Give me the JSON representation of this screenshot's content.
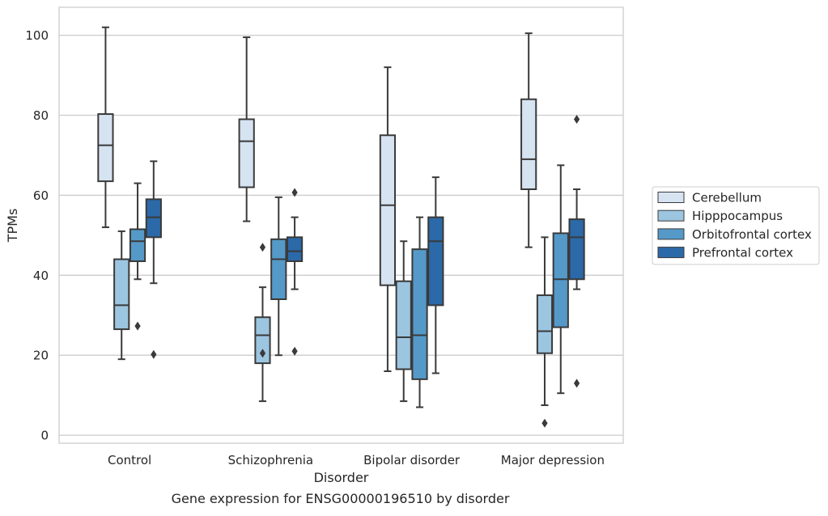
{
  "chart_data": {
    "type": "box",
    "caption": "Gene expression for ENSG00000196510 by disorder",
    "xlabel": "Disorder",
    "ylabel": "TPMs",
    "ylim": [
      -2,
      107
    ],
    "yticks": [
      0,
      20,
      40,
      60,
      80,
      100
    ],
    "grid": "horizontal",
    "legend_position": "right",
    "categories": [
      "Control",
      "Schizophrenia",
      "Bipolar disorder",
      "Major depression"
    ],
    "series": [
      {
        "name": "Cerebellum",
        "color": "#d6e3f1",
        "boxes": [
          {
            "whisker_low": 52,
            "q1": 63.5,
            "median": 72.5,
            "q3": 80.3,
            "whisker_high": 102,
            "outliers": []
          },
          {
            "whisker_low": 53.5,
            "q1": 62,
            "median": 73.5,
            "q3": 79,
            "whisker_high": 99.5,
            "outliers": []
          },
          {
            "whisker_low": 16,
            "q1": 37.5,
            "median": 57.5,
            "q3": 75,
            "whisker_high": 92,
            "outliers": []
          },
          {
            "whisker_low": 47,
            "q1": 61.5,
            "median": 69,
            "q3": 84,
            "whisker_high": 100.5,
            "outliers": []
          }
        ]
      },
      {
        "name": "Hipppocampus",
        "color": "#9cc5e0",
        "boxes": [
          {
            "whisker_low": 19,
            "q1": 26.5,
            "median": 32.5,
            "q3": 44,
            "whisker_high": 51,
            "outliers": []
          },
          {
            "whisker_low": 8.5,
            "q1": 18,
            "median": 25,
            "q3": 29.5,
            "whisker_high": 37,
            "outliers": [
              20.5,
              47
            ]
          },
          {
            "whisker_low": 8.5,
            "q1": 16.5,
            "median": 24.5,
            "q3": 38.5,
            "whisker_high": 48.5,
            "outliers": []
          },
          {
            "whisker_low": 7.5,
            "q1": 20.5,
            "median": 26,
            "q3": 35,
            "whisker_high": 49.5,
            "outliers": [
              3
            ]
          }
        ]
      },
      {
        "name": "Orbitofrontal cortex",
        "color": "#5599c8",
        "boxes": [
          {
            "whisker_low": 39,
            "q1": 43.5,
            "median": 48.5,
            "q3": 51.5,
            "whisker_high": 63,
            "outliers": [
              27.3
            ]
          },
          {
            "whisker_low": 20,
            "q1": 34,
            "median": 44,
            "q3": 49,
            "whisker_high": 59.5,
            "outliers": []
          },
          {
            "whisker_low": 7,
            "q1": 14,
            "median": 25,
            "q3": 46.5,
            "whisker_high": 54.5,
            "outliers": []
          },
          {
            "whisker_low": 10.5,
            "q1": 27,
            "median": 39,
            "q3": 50.5,
            "whisker_high": 67.5,
            "outliers": []
          }
        ]
      },
      {
        "name": "Prefrontal cortex",
        "color": "#2b69a8",
        "boxes": [
          {
            "whisker_low": 38,
            "q1": 49.5,
            "median": 54.5,
            "q3": 59,
            "whisker_high": 68.5,
            "outliers": [
              20.2
            ]
          },
          {
            "whisker_low": 36.5,
            "q1": 43.5,
            "median": 46,
            "q3": 49.5,
            "whisker_high": 54.5,
            "outliers": [
              21,
              60.7
            ]
          },
          {
            "whisker_low": 15.5,
            "q1": 32.5,
            "median": 48.5,
            "q3": 54.5,
            "whisker_high": 64.5,
            "outliers": []
          },
          {
            "whisker_low": 36.5,
            "q1": 39,
            "median": 49.5,
            "q3": 54,
            "whisker_high": 61.5,
            "outliers": [
              13,
              79
            ]
          }
        ]
      }
    ]
  }
}
